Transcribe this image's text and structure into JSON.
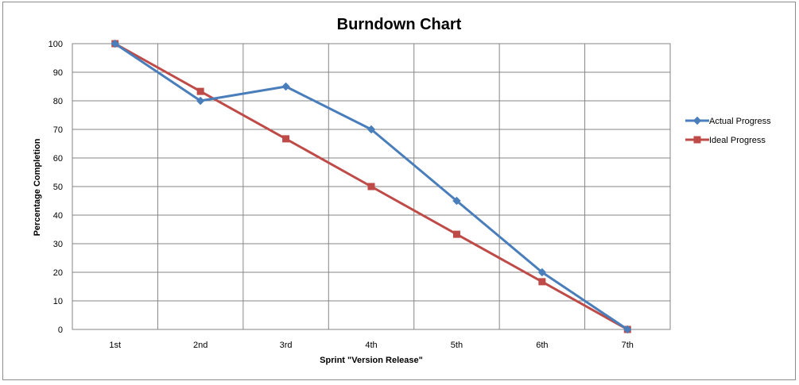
{
  "chart_data": {
    "type": "line",
    "title": "Burndown Chart",
    "xlabel": "Sprint \"Version Release\"",
    "ylabel": "Percentage Completion",
    "categories": [
      "1st",
      "2nd",
      "3rd",
      "4th",
      "5th",
      "6th",
      "7th"
    ],
    "ylim": [
      0,
      100
    ],
    "yticks": [
      0,
      10,
      20,
      30,
      40,
      50,
      60,
      70,
      80,
      90,
      100
    ],
    "grid": true,
    "legend_position": "right",
    "series": [
      {
        "name": "Actual Progress",
        "marker": "diamond",
        "color": "#4a7ebb",
        "values": [
          100,
          80,
          85,
          70,
          45,
          20,
          0
        ]
      },
      {
        "name": "Ideal Progress",
        "marker": "square",
        "color": "#be4b48",
        "values": [
          100,
          83.3,
          66.7,
          50,
          33.3,
          16.7,
          0
        ]
      }
    ]
  }
}
